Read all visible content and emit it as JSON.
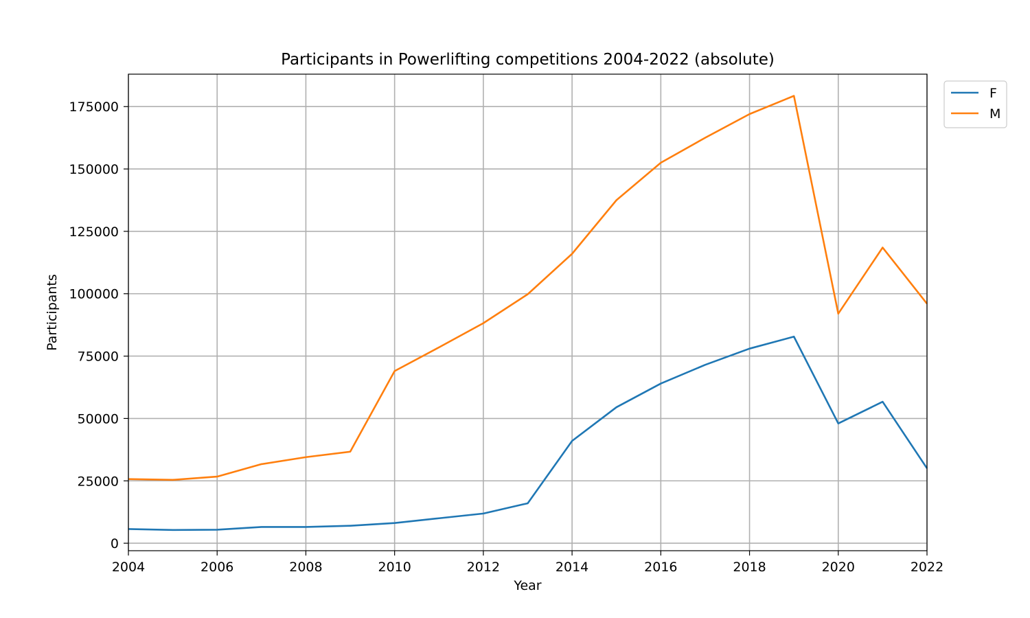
{
  "chart_data": {
    "type": "line",
    "title": "Participants in Powerlifting competitions 2004-2022 (absolute)",
    "xlabel": "Year",
    "ylabel": "Participants",
    "xlim": [
      2004,
      2022
    ],
    "ylim": [
      -3000,
      188000
    ],
    "x_ticks": [
      2004,
      2006,
      2008,
      2010,
      2012,
      2014,
      2016,
      2018,
      2020,
      2022
    ],
    "y_ticks": [
      0,
      25000,
      50000,
      75000,
      100000,
      125000,
      150000,
      175000
    ],
    "grid": true,
    "legend_position": "outside-top-right",
    "x": [
      2004,
      2005,
      2006,
      2007,
      2008,
      2009,
      2010,
      2011,
      2012,
      2013,
      2014,
      2015,
      2016,
      2017,
      2018,
      2019,
      2020,
      2021,
      2022
    ],
    "series": [
      {
        "name": "F",
        "color": "#1f77b4",
        "values": [
          5700,
          5300,
          5400,
          6500,
          6500,
          7000,
          8100,
          10000,
          11900,
          16000,
          41000,
          54500,
          64000,
          71500,
          78000,
          82800,
          48000,
          56700,
          30000
        ]
      },
      {
        "name": "M",
        "color": "#ff7f0e",
        "values": [
          25700,
          25400,
          26700,
          31700,
          34500,
          36700,
          69000,
          78500,
          88200,
          99800,
          116000,
          137500,
          152500,
          162500,
          172000,
          179300,
          92000,
          118500,
          96000
        ]
      }
    ]
  }
}
